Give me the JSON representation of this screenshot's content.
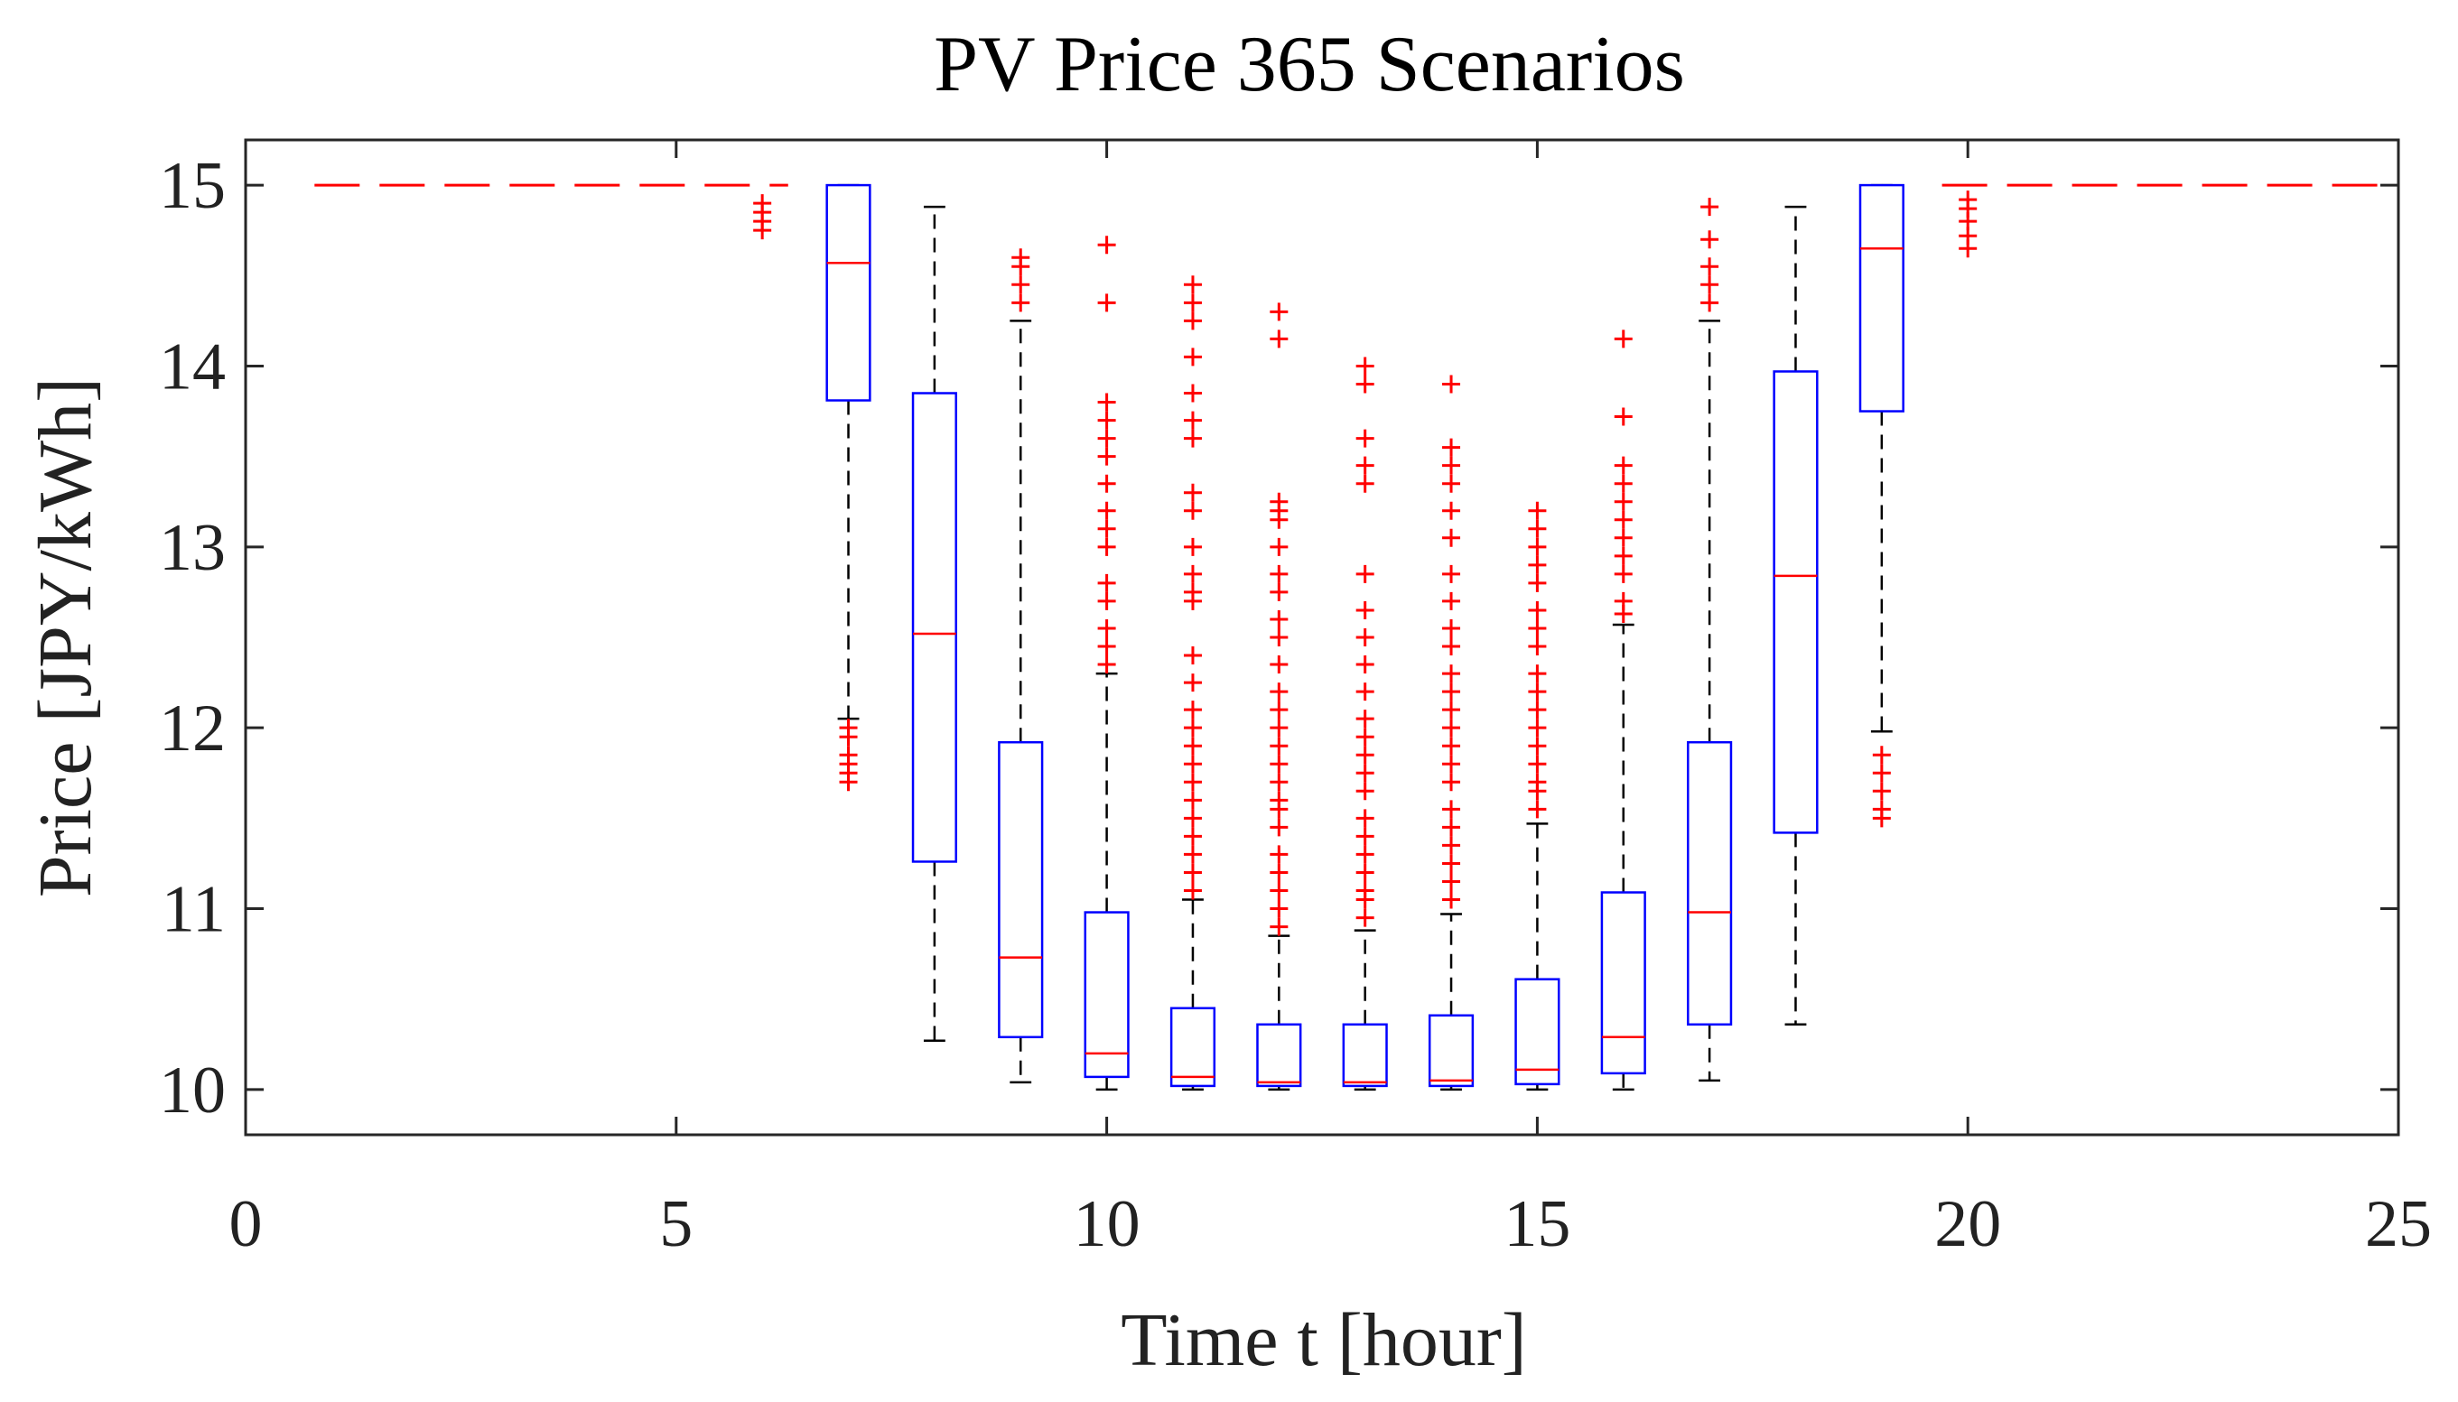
{
  "chart_data": {
    "type": "boxplot",
    "title": "PV Price 365 Scenarios",
    "xlabel": "Time t [hour]",
    "ylabel": "Price [JPY/kWh]",
    "xlim": [
      0,
      25
    ],
    "ylim": [
      9.75,
      15.25
    ],
    "xticks": [
      0,
      5,
      10,
      15,
      20,
      25
    ],
    "yticks": [
      10,
      11,
      12,
      13,
      14,
      15
    ],
    "grid": false,
    "colors": {
      "box": "#0000ff",
      "median": "#ff0000",
      "whisker": "#000000",
      "outlier": "#ff0000",
      "axis": "#262626"
    },
    "flat_price": {
      "value": 15,
      "x_ranges": [
        [
          0.8,
          6.3
        ],
        [
          19.7,
          24.8
        ]
      ],
      "style": "dashed"
    },
    "boxes": [
      {
        "hour": 6,
        "outliers": [
          14.75,
          14.8,
          14.85,
          14.9
        ]
      },
      {
        "hour": 7,
        "q1": 13.81,
        "median": 14.57,
        "q3": 15.0,
        "whisker_low": 12.05,
        "whisker_high": 15.0,
        "outliers": [
          12.0,
          11.95,
          11.85,
          11.8,
          11.75,
          11.7
        ]
      },
      {
        "hour": 8,
        "q1": 11.26,
        "median": 12.52,
        "q3": 13.85,
        "whisker_low": 10.27,
        "whisker_high": 14.88,
        "outliers": []
      },
      {
        "hour": 9,
        "q1": 10.29,
        "median": 10.73,
        "q3": 11.92,
        "whisker_low": 10.04,
        "whisker_high": 14.25,
        "outliers": [
          14.35,
          14.45,
          14.55,
          14.6
        ]
      },
      {
        "hour": 10,
        "q1": 10.07,
        "median": 10.2,
        "q3": 10.98,
        "whisker_low": 10.0,
        "whisker_high": 12.3,
        "outliers": [
          12.35,
          12.45,
          12.55,
          12.7,
          12.8,
          13.0,
          13.1,
          13.2,
          13.35,
          13.5,
          13.6,
          13.7,
          13.8,
          14.35,
          14.67
        ]
      },
      {
        "hour": 11,
        "q1": 10.02,
        "median": 10.07,
        "q3": 10.45,
        "whisker_low": 10.0,
        "whisker_high": 11.05,
        "outliers": [
          11.1,
          11.2,
          11.3,
          11.4,
          11.5,
          11.6,
          11.7,
          11.8,
          11.9,
          12.0,
          12.1,
          12.25,
          12.4,
          12.7,
          12.75,
          12.85,
          13.0,
          13.2,
          13.3,
          13.6,
          13.7,
          13.85,
          14.05,
          14.25,
          14.35,
          14.45
        ]
      },
      {
        "hour": 12,
        "q1": 10.02,
        "median": 10.04,
        "q3": 10.36,
        "whisker_low": 10.0,
        "whisker_high": 10.85,
        "outliers": [
          10.9,
          11.0,
          11.1,
          11.2,
          11.3,
          11.45,
          11.55,
          11.6,
          11.7,
          11.8,
          11.9,
          12.0,
          12.1,
          12.2,
          12.35,
          12.5,
          12.6,
          12.75,
          12.85,
          13.0,
          13.15,
          13.2,
          13.25,
          14.15,
          14.3
        ]
      },
      {
        "hour": 13,
        "q1": 10.02,
        "median": 10.04,
        "q3": 10.36,
        "whisker_low": 10.0,
        "whisker_high": 10.88,
        "outliers": [
          10.95,
          11.05,
          11.1,
          11.2,
          11.3,
          11.4,
          11.5,
          11.65,
          11.75,
          11.85,
          11.95,
          12.05,
          12.2,
          12.35,
          12.5,
          12.65,
          12.85,
          13.35,
          13.45,
          13.6,
          13.9,
          14.0
        ]
      },
      {
        "hour": 14,
        "q1": 10.02,
        "median": 10.05,
        "q3": 10.41,
        "whisker_low": 10.0,
        "whisker_high": 10.97,
        "outliers": [
          11.05,
          11.15,
          11.25,
          11.35,
          11.45,
          11.55,
          11.7,
          11.8,
          11.9,
          12.0,
          12.1,
          12.2,
          12.3,
          12.45,
          12.55,
          12.7,
          12.85,
          13.05,
          13.2,
          13.35,
          13.45,
          13.55,
          13.9
        ]
      },
      {
        "hour": 15,
        "q1": 10.03,
        "median": 10.11,
        "q3": 10.61,
        "whisker_low": 10.0,
        "whisker_high": 11.47,
        "outliers": [
          11.55,
          11.65,
          11.7,
          11.8,
          11.9,
          12.0,
          12.1,
          12.2,
          12.3,
          12.45,
          12.55,
          12.65,
          12.8,
          12.9,
          13.0,
          13.1,
          13.2
        ]
      },
      {
        "hour": 16,
        "q1": 10.09,
        "median": 10.29,
        "q3": 11.09,
        "whisker_low": 10.0,
        "whisker_high": 12.57,
        "outliers": [
          12.63,
          12.7,
          12.85,
          12.95,
          13.05,
          13.15,
          13.25,
          13.35,
          13.45,
          13.72,
          14.15
        ]
      },
      {
        "hour": 17,
        "q1": 10.36,
        "median": 10.98,
        "q3": 11.92,
        "whisker_low": 10.05,
        "whisker_high": 14.25,
        "outliers": [
          14.35,
          14.45,
          14.55,
          14.7,
          14.88
        ]
      },
      {
        "hour": 18,
        "q1": 11.42,
        "median": 12.84,
        "q3": 13.97,
        "whisker_low": 10.36,
        "whisker_high": 14.88,
        "outliers": []
      },
      {
        "hour": 19,
        "q1": 13.75,
        "median": 14.65,
        "q3": 15.0,
        "whisker_low": 11.98,
        "whisker_high": 15.0,
        "outliers": [
          11.85,
          11.75,
          11.65,
          11.55,
          11.5
        ]
      },
      {
        "hour": 20,
        "outliers": [
          14.65,
          14.72,
          14.8,
          14.87,
          14.92
        ]
      }
    ]
  }
}
